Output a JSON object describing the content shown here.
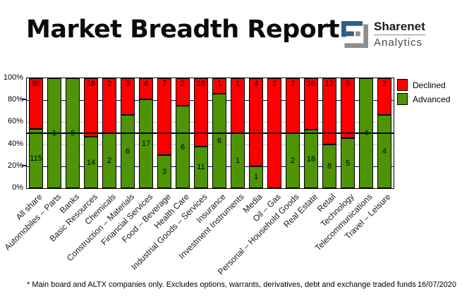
{
  "header": {
    "logo": {
      "name": "Sharenet",
      "sub": "Analytics",
      "blue": "#2f5e86",
      "gray": "#8e8e8e"
    }
  },
  "chart_data": {
    "type": "bar",
    "stacking": "percent",
    "title": "Market Breadth Report",
    "xlabel": "",
    "ylabel": "",
    "ylim": [
      0,
      100
    ],
    "yticks": [
      "100%",
      "80%",
      "60%",
      "40%",
      "20%",
      "0%"
    ],
    "grid": "horizontal",
    "legend_position": "right-top",
    "gridlines": [
      {
        "pct": 80,
        "color": "#000080"
      },
      {
        "pct": 60,
        "color": "#c0c0c0"
      },
      {
        "pct": 40,
        "color": "#c0c0c0"
      },
      {
        "pct": 20,
        "color": "#000080"
      }
    ],
    "reference_line": {
      "pct": 50,
      "color": "#000000"
    },
    "categories": [
      "All share",
      "Automobiles – Parts",
      "Banks",
      "Basic Resources",
      "Chemicals",
      "Construction – Materials",
      "Financial Services",
      "Food – Beverage",
      "Health Care",
      "Industrial Goods – Services",
      "Insurance",
      "Investment Instruments",
      "Media",
      "Oil – Gas",
      "Personal – Household Goods",
      "Real Estate",
      "Retail",
      "Technology",
      "Telecommunications",
      "Travel – Leisure"
    ],
    "series": [
      {
        "name": "Declined",
        "color": "#ff0000",
        "values": [
          98,
          0,
          0,
          16,
          2,
          3,
          4,
          7,
          2,
          18,
          1,
          1,
          4,
          2,
          2,
          16,
          12,
          6,
          0,
          2
        ]
      },
      {
        "name": "Advanced",
        "color": "#4e9406",
        "values": [
          115,
          1,
          6,
          14,
          2,
          6,
          17,
          3,
          6,
          11,
          6,
          1,
          1,
          0,
          2,
          18,
          8,
          5,
          4,
          4
        ]
      }
    ]
  },
  "legend": [
    {
      "label": "Declined",
      "color": "#ff0000"
    },
    {
      "label": "Advanced",
      "color": "#4e9406"
    }
  ],
  "footer": {
    "note": "* Main board and ALTX companies only. Excludes options, warrants, derivatives, debt and exchange traded funds",
    "date": "16/07/2020"
  }
}
